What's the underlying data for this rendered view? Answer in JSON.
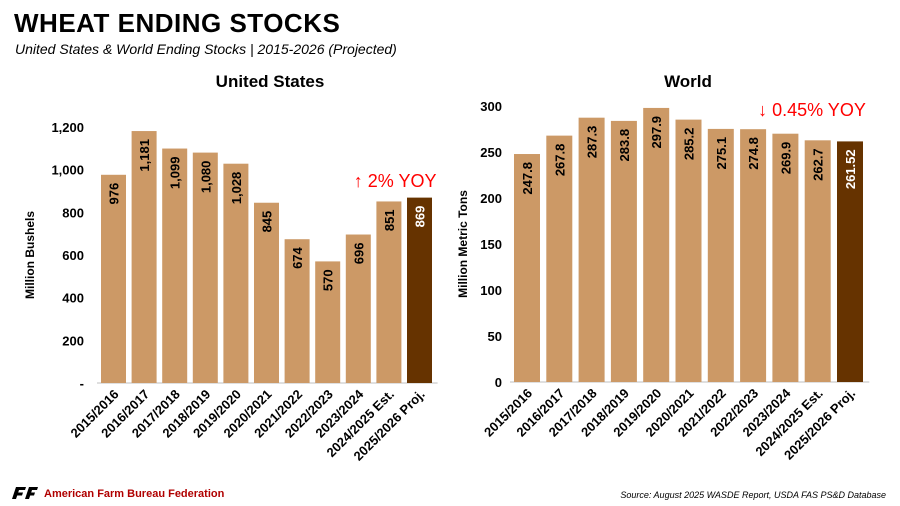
{
  "title": "WHEAT ENDING STOCKS",
  "subtitle": "United States & World Ending Stocks | 2015-2026 (Projected)",
  "colors": {
    "bar": "#cc9966",
    "bar_highlight": "#663300",
    "annotation": "#ff0000"
  },
  "footer": {
    "organization": "American Farm Bureau Federation",
    "source": "Source: August 2025 WASDE Report, USDA FAS PS&D Database",
    "logo_icon": "afbf-logo-icon"
  },
  "chart_data": [
    {
      "type": "bar",
      "title": "United States",
      "ylabel": "Million Bushels",
      "xlabel": "",
      "ylim": [
        0,
        1200
      ],
      "yticks": [
        "-",
        "200",
        "400",
        "600",
        "800",
        "1,000",
        "1,200"
      ],
      "grid": false,
      "categories": [
        "2015/2016",
        "2016/2017",
        "2017/2018",
        "2018/2019",
        "2019/2020",
        "2020/2021",
        "2021/2022",
        "2022/2023",
        "2023/2024",
        "2024/2025 Est.",
        "2025/2026 Proj."
      ],
      "values": [
        976,
        1181,
        1099,
        1080,
        1028,
        845,
        674,
        570,
        696,
        851,
        869
      ],
      "data_labels": [
        "976",
        "1,181",
        "1,099",
        "1,080",
        "1,028",
        "845",
        "674",
        "570",
        "696",
        "851",
        "869"
      ],
      "annotation": "↑ 2% YOY"
    },
    {
      "type": "bar",
      "title": "World",
      "ylabel": "Million Metric Tons",
      "xlabel": "",
      "ylim": [
        0,
        300
      ],
      "yticks": [
        "0",
        "50",
        "100",
        "150",
        "200",
        "250",
        "300"
      ],
      "grid": false,
      "categories": [
        "2015/2016",
        "2016/2017",
        "2017/2018",
        "2018/2019",
        "2019/2020",
        "2020/2021",
        "2021/2022",
        "2022/2023",
        "2023/2024",
        "2024/2025 Est.",
        "2025/2026 Proj."
      ],
      "values": [
        247.8,
        267.8,
        287.3,
        283.8,
        297.9,
        285.2,
        275.1,
        274.8,
        269.9,
        262.7,
        261.52
      ],
      "data_labels": [
        "247.8",
        "267.8",
        "287.3",
        "283.8",
        "297.9",
        "285.2",
        "275.1",
        "274.8",
        "269.9",
        "262.7",
        "261.52"
      ],
      "annotation": "↓ 0.45% YOY"
    }
  ]
}
